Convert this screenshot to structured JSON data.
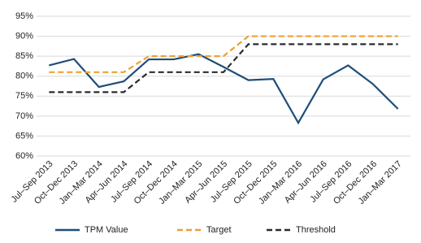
{
  "chart_data": {
    "type": "line",
    "categories": [
      "Jul–Sep 2013",
      "Oct–Dec 2013",
      "Jan–Mar 2014",
      "Apr–Jun 2014",
      "Jul–Sep 2014",
      "Oct–Dec 2014",
      "Jan–Mar 2015",
      "Apr–Jun 2015",
      "Jul–Sep 2015",
      "Oct–Dec 2015",
      "Jan–Mar 2016",
      "Apr–Jun 2016",
      "Jul–Sep 2016",
      "Oct–Dec 2016",
      "Jan–Mar 2017"
    ],
    "series": [
      {
        "name": "TPM Value",
        "color": "#1f4e79",
        "dashed": false,
        "values": [
          82.7,
          84.3,
          77.3,
          78.7,
          84.2,
          84.2,
          85.5,
          82.3,
          79.0,
          79.3,
          68.3,
          79.2,
          82.7,
          78.0,
          71.8
        ]
      },
      {
        "name": "Target",
        "color": "#f0a030",
        "dashed": true,
        "values": [
          81,
          81,
          81,
          81,
          85,
          85,
          85,
          85,
          90,
          90,
          90,
          90,
          90,
          90,
          90
        ]
      },
      {
        "name": "Threshold",
        "color": "#2b2b33",
        "dashed": true,
        "values": [
          76,
          76,
          76,
          76,
          81,
          81,
          81,
          81,
          88,
          88,
          88,
          88,
          88,
          88,
          88
        ]
      }
    ],
    "ylim": [
      60,
      95
    ],
    "yticks": [
      {
        "value": 60,
        "label": "60%"
      },
      {
        "value": 65,
        "label": "65%"
      },
      {
        "value": 70,
        "label": "70%"
      },
      {
        "value": 75,
        "label": "75%"
      },
      {
        "value": 80,
        "label": "80%"
      },
      {
        "value": 85,
        "label": "85%"
      },
      {
        "value": 90,
        "label": "90%"
      },
      {
        "value": 95,
        "label": "95%"
      }
    ],
    "grid": true,
    "legend": "bottom"
  }
}
